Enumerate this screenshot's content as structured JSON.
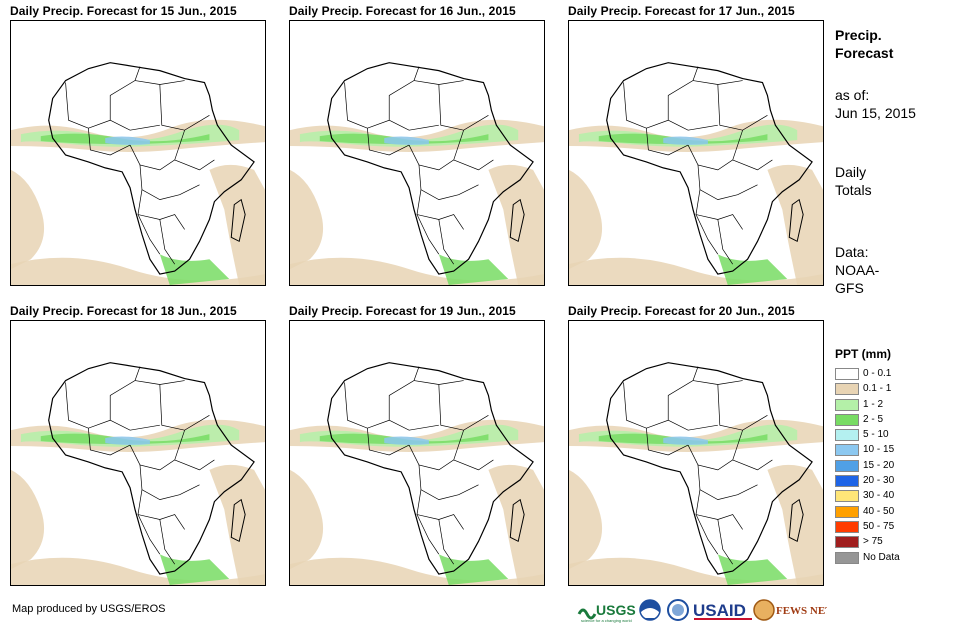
{
  "panels": [
    {
      "title": "Daily Precip. Forecast for 15 Jun., 2015"
    },
    {
      "title": "Daily Precip. Forecast for 16 Jun., 2015"
    },
    {
      "title": "Daily Precip. Forecast for 17 Jun., 2015"
    },
    {
      "title": "Daily Precip. Forecast for 18 Jun., 2015"
    },
    {
      "title": "Daily Precip. Forecast for 19 Jun., 2015"
    },
    {
      "title": "Daily Precip. Forecast for 20 Jun., 2015"
    }
  ],
  "side": {
    "heading_line1": "Precip.",
    "heading_line2": "Forecast",
    "asof_line1": "as of:",
    "asof_line2": "Jun 15, 2015",
    "daily_line1": "Daily",
    "daily_line2": "Totals",
    "data_line1": "Data:",
    "data_line2": "NOAA-",
    "data_line3": "GFS"
  },
  "legend": {
    "title": "PPT (mm)",
    "items": [
      {
        "label": "0 - 0.1",
        "color": "#ffffff"
      },
      {
        "label": "0.1 - 1",
        "color": "#e8d4b4"
      },
      {
        "label": "1 - 2",
        "color": "#b4f0a8"
      },
      {
        "label": "2 - 5",
        "color": "#78dc64"
      },
      {
        "label": "5 - 10",
        "color": "#b4f0f0"
      },
      {
        "label": "10 - 15",
        "color": "#8cc8f0"
      },
      {
        "label": "15 - 20",
        "color": "#50a0e6"
      },
      {
        "label": "20 - 30",
        "color": "#1e64e6"
      },
      {
        "label": "30 - 40",
        "color": "#ffe678"
      },
      {
        "label": "40 - 50",
        "color": "#ffa000"
      },
      {
        "label": "50 - 75",
        "color": "#ff3c00"
      },
      {
        "label": "> 75",
        "color": "#a01e1e"
      },
      {
        "label": "No Data",
        "color": "#969696"
      }
    ]
  },
  "footer": {
    "credit": "Map produced by USGS/EROS",
    "logo_usgs": "USGS",
    "logo_usgs_tagline": "science for a changing world",
    "logo_usaid": "USAID",
    "logo_fews": "FEWS NET"
  }
}
